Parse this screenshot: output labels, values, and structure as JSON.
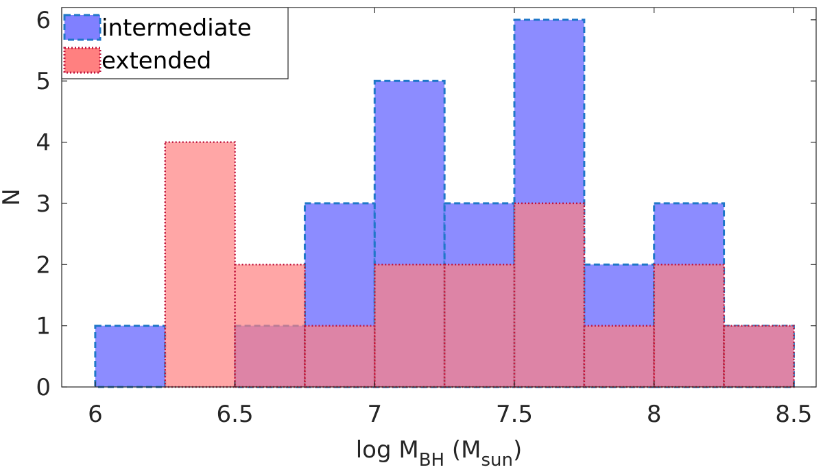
{
  "chart_data": {
    "type": "bar",
    "subtype": "overlaid-histogram",
    "title": "",
    "xlabel": {
      "prefix": "log M",
      "sub": "BH",
      "middle": " (M",
      "sub2": "sun",
      "suffix": ")"
    },
    "ylabel": "N",
    "xlim": [
      5.88,
      8.58
    ],
    "ylim": [
      0,
      6.2
    ],
    "xticks": [
      6,
      6.5,
      7,
      7.5,
      8,
      8.5
    ],
    "xtick_labels": [
      "6",
      "6.5",
      "7",
      "7.5",
      "8",
      "8.5"
    ],
    "yticks": [
      0,
      1,
      2,
      3,
      4,
      5,
      6
    ],
    "ytick_labels": [
      "0",
      "1",
      "2",
      "3",
      "4",
      "5",
      "6"
    ],
    "bin_edges": [
      6,
      6.25,
      6.5,
      6.75,
      7,
      7.25,
      7.5,
      7.75,
      8,
      8.25,
      8.5
    ],
    "series": [
      {
        "name": "intermediate",
        "values": [
          1,
          0,
          1,
          3,
          5,
          3,
          6,
          2,
          3,
          1
        ],
        "fill": "#8080ff",
        "edge": "#1f77c8",
        "edge_style": "dashed"
      },
      {
        "name": "extended",
        "values": [
          0,
          4,
          2,
          1,
          2,
          2,
          3,
          1,
          2,
          1
        ],
        "fill": "#ff8080",
        "edge": "#c0143c",
        "edge_style": "dotted"
      }
    ],
    "legend_location": "top-left",
    "grid": false
  }
}
